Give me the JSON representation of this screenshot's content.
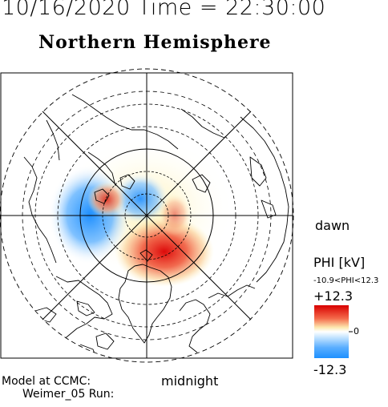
{
  "header": {
    "time_line": "10/16/2020 Time = 22:30:00",
    "title": "Northern Hemisphere"
  },
  "map": {
    "projection": "polar",
    "hemisphere": "north",
    "grid_rings": "dashed",
    "coastlines": true,
    "potential_cells": [
      {
        "sign": "negative",
        "side": "dusk-noon",
        "peak_kv": -10.9
      },
      {
        "sign": "positive",
        "side": "dawn-night",
        "peak_kv": 12.3
      }
    ]
  },
  "labels": {
    "dawn": "dawn",
    "midnight": "midnight",
    "model_at": "Model at CCMC:",
    "run": "Weimer_05 Run:"
  },
  "colorbar": {
    "title": "PHI [kV]",
    "range_text": "-10.9<PHI<12.3",
    "max_label": "+12.3",
    "zero_label": "0",
    "min_label": "-12.3",
    "colors": {
      "top": "#d80000",
      "mid": "#ffffff",
      "bottom": "#1e90ff"
    }
  }
}
